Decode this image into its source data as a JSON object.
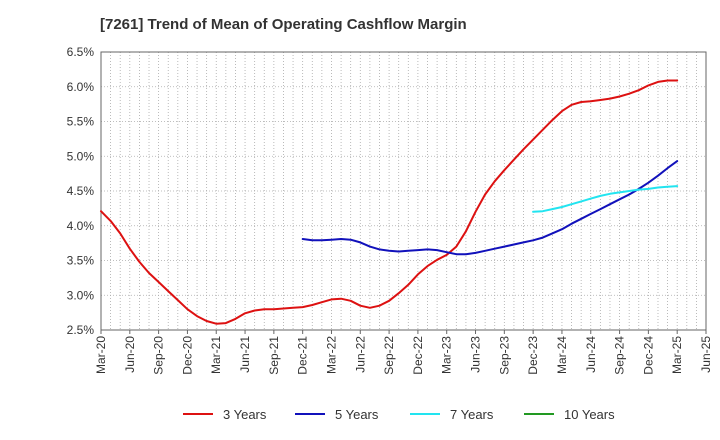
{
  "chart_data": {
    "type": "line",
    "title": "[7261]  Trend of Mean of Operating Cashflow Margin",
    "xlabel": "",
    "ylabel": "",
    "x_ticks": [
      "Mar-20",
      "Jun-20",
      "Sep-20",
      "Dec-20",
      "Mar-21",
      "Jun-21",
      "Sep-21",
      "Dec-21",
      "Mar-22",
      "Jun-22",
      "Sep-22",
      "Dec-22",
      "Mar-23",
      "Jun-23",
      "Sep-23",
      "Dec-23",
      "Mar-24",
      "Jun-24",
      "Sep-24",
      "Dec-24",
      "Mar-25",
      "Jun-25"
    ],
    "y_ticks": [
      "2.5%",
      "3.0%",
      "3.5%",
      "4.0%",
      "4.5%",
      "5.0%",
      "5.5%",
      "6.0%",
      "6.5%"
    ],
    "ylim": [
      2.5,
      6.5
    ],
    "xlim": [
      "Mar-20",
      "Jun-25"
    ],
    "grid": true,
    "legend_position": "bottom",
    "series": [
      {
        "name": "3 Years",
        "color": "#dd1111",
        "x": [
          "Mar-20",
          "Apr-20",
          "May-20",
          "Jun-20",
          "Jul-20",
          "Aug-20",
          "Sep-20",
          "Oct-20",
          "Nov-20",
          "Dec-20",
          "Jan-21",
          "Feb-21",
          "Mar-21",
          "Apr-21",
          "May-21",
          "Jun-21",
          "Jul-21",
          "Aug-21",
          "Sep-21",
          "Oct-21",
          "Nov-21",
          "Dec-21",
          "Jan-22",
          "Feb-22",
          "Mar-22",
          "Apr-22",
          "May-22",
          "Jun-22",
          "Jul-22",
          "Aug-22",
          "Sep-22",
          "Oct-22",
          "Nov-22",
          "Dec-22",
          "Jan-23",
          "Feb-23",
          "Mar-23",
          "Apr-23",
          "May-23",
          "Jun-23",
          "Jul-23",
          "Aug-23",
          "Sep-23",
          "Oct-23",
          "Nov-23",
          "Dec-23",
          "Jan-24",
          "Feb-24",
          "Mar-24",
          "Apr-24",
          "May-24",
          "Jun-24",
          "Jul-24",
          "Aug-24",
          "Sep-24",
          "Oct-24",
          "Nov-24",
          "Dec-24",
          "Jan-25",
          "Feb-25",
          "Mar-25"
        ],
        "values": [
          4.21,
          4.07,
          3.89,
          3.67,
          3.48,
          3.32,
          3.19,
          3.06,
          2.93,
          2.8,
          2.7,
          2.63,
          2.59,
          2.6,
          2.66,
          2.74,
          2.78,
          2.8,
          2.8,
          2.81,
          2.82,
          2.83,
          2.86,
          2.9,
          2.94,
          2.95,
          2.92,
          2.85,
          2.82,
          2.85,
          2.92,
          3.03,
          3.15,
          3.3,
          3.42,
          3.51,
          3.58,
          3.7,
          3.92,
          4.2,
          4.45,
          4.64,
          4.8,
          4.95,
          5.1,
          5.24,
          5.38,
          5.52,
          5.65,
          5.74,
          5.78,
          5.79,
          5.81,
          5.83,
          5.86,
          5.9,
          5.95,
          6.02,
          6.07,
          6.09,
          6.09
        ]
      },
      {
        "name": "5 Years",
        "color": "#1111bb",
        "x": [
          "Dec-21",
          "Jan-22",
          "Feb-22",
          "Mar-22",
          "Apr-22",
          "May-22",
          "Jun-22",
          "Jul-22",
          "Aug-22",
          "Sep-22",
          "Oct-22",
          "Nov-22",
          "Dec-22",
          "Jan-23",
          "Feb-23",
          "Mar-23",
          "Apr-23",
          "May-23",
          "Jun-23",
          "Jul-23",
          "Aug-23",
          "Sep-23",
          "Oct-23",
          "Nov-23",
          "Dec-23",
          "Jan-24",
          "Feb-24",
          "Mar-24",
          "Apr-24",
          "May-24",
          "Jun-24",
          "Jul-24",
          "Aug-24",
          "Sep-24",
          "Oct-24",
          "Nov-24",
          "Dec-24",
          "Jan-25",
          "Feb-25",
          "Mar-25"
        ],
        "values": [
          3.81,
          3.79,
          3.79,
          3.8,
          3.81,
          3.8,
          3.76,
          3.7,
          3.66,
          3.64,
          3.63,
          3.64,
          3.65,
          3.66,
          3.65,
          3.62,
          3.59,
          3.59,
          3.61,
          3.64,
          3.67,
          3.7,
          3.73,
          3.76,
          3.79,
          3.83,
          3.89,
          3.95,
          4.03,
          4.1,
          4.17,
          4.24,
          4.31,
          4.38,
          4.45,
          4.53,
          4.62,
          4.72,
          4.83,
          4.93
        ]
      },
      {
        "name": "7 Years",
        "color": "#22e4f0",
        "x": [
          "Dec-23",
          "Jan-24",
          "Feb-24",
          "Mar-24",
          "Apr-24",
          "May-24",
          "Jun-24",
          "Jul-24",
          "Aug-24",
          "Sep-24",
          "Oct-24",
          "Nov-24",
          "Dec-24",
          "Jan-25",
          "Feb-25",
          "Mar-25"
        ],
        "values": [
          4.2,
          4.21,
          4.24,
          4.27,
          4.31,
          4.35,
          4.39,
          4.43,
          4.46,
          4.48,
          4.5,
          4.52,
          4.53,
          4.55,
          4.56,
          4.57
        ]
      },
      {
        "name": "10 Years",
        "color": "#229922",
        "x": [],
        "values": []
      }
    ]
  }
}
